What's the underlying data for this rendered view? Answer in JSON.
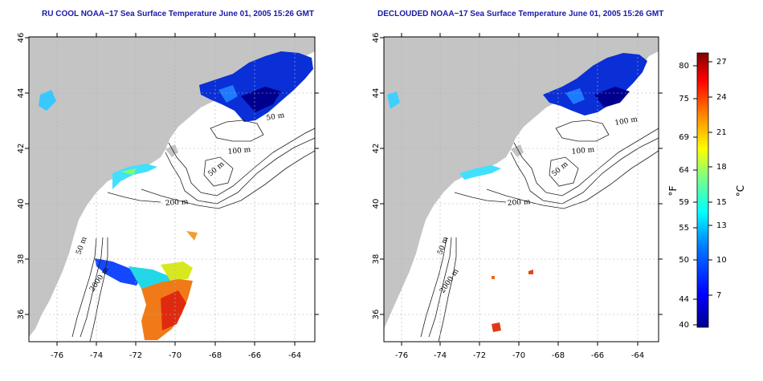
{
  "panels": [
    {
      "id": "left",
      "title": "RU COOL NOAA−17 Sea Surface Temperature June 01, 2005 15:26 GMT",
      "x_ticks": [
        "-76",
        "-74",
        "-72",
        "-70",
        "-68",
        "-66",
        "-64"
      ],
      "y_ticks": [
        "46",
        "44",
        "42",
        "40",
        "38",
        "36"
      ],
      "contour_labels": [
        "50 m",
        "100 m",
        "50 m",
        "200 m",
        "50 m",
        "2000 m"
      ]
    },
    {
      "id": "right",
      "title": "DECLOUDED NOAA−17 Sea Surface Temperature June 01, 2005 15:26 GMT",
      "x_ticks": [
        "-76",
        "-74",
        "-72",
        "-70",
        "-68",
        "-66",
        "-64"
      ],
      "y_ticks": [
        "46",
        "44",
        "42",
        "40",
        "38",
        "36"
      ],
      "contour_labels": [
        "100 m",
        "100 m",
        "50 m",
        "200 m",
        "50 m",
        "2000 m"
      ]
    }
  ],
  "colorbar": {
    "fahrenheit_unit": "°F",
    "celsius_unit": "°C",
    "fahrenheit_ticks": [
      "80",
      "75",
      "69",
      "64",
      "59",
      "55",
      "50",
      "44",
      "40"
    ],
    "celsius_ticks": [
      "27",
      "24",
      "21",
      "18",
      "15",
      "13",
      "10",
      "7"
    ],
    "colors": [
      "#00008f",
      "#0000ff",
      "#0080ff",
      "#00ffff",
      "#80ff80",
      "#ffff00",
      "#ff8000",
      "#ff0000",
      "#800000"
    ]
  },
  "map": {
    "lon_range": [
      -77,
      -63
    ],
    "lat_range": [
      35,
      46
    ],
    "land_color": "#c4c4c4",
    "grid_color": "#b0b0b0"
  }
}
